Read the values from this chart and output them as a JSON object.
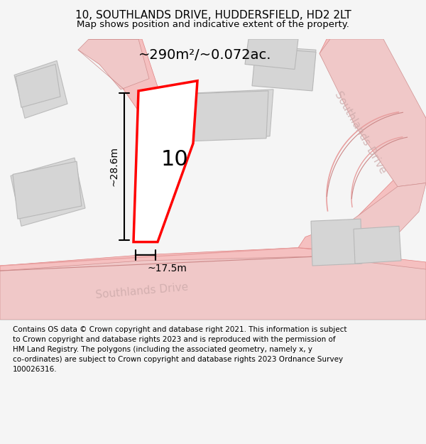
{
  "title": "10, SOUTHLANDS DRIVE, HUDDERSFIELD, HD2 2LT",
  "subtitle": "Map shows position and indicative extent of the property.",
  "footer": "Contains OS data © Crown copyright and database right 2021. This information is subject\nto Crown copyright and database rights 2023 and is reproduced with the permission of\nHM Land Registry. The polygons (including the associated geometry, namely x, y\nco-ordinates) are subject to Crown copyright and database rights 2023 Ordnance Survey\n100026316.",
  "bg_color": "#f5f5f5",
  "map_bg": "#ffffff",
  "road_color": "#f5c0c0",
  "road_border_color": "#e08080",
  "building_color": "#d8d8d8",
  "building_border": "#bbbbbb",
  "plot_color": "#ff0000",
  "plot_fill": "white",
  "plot_label": "10",
  "area_text": "~290m²/~0.072ac.",
  "dim_width": "~17.5m",
  "dim_height": "~28.6m",
  "road_label_main": "Southlands Drive",
  "road_label_side": "Southlands Drive",
  "figsize": [
    6.0,
    6.25
  ],
  "dpi": 100
}
